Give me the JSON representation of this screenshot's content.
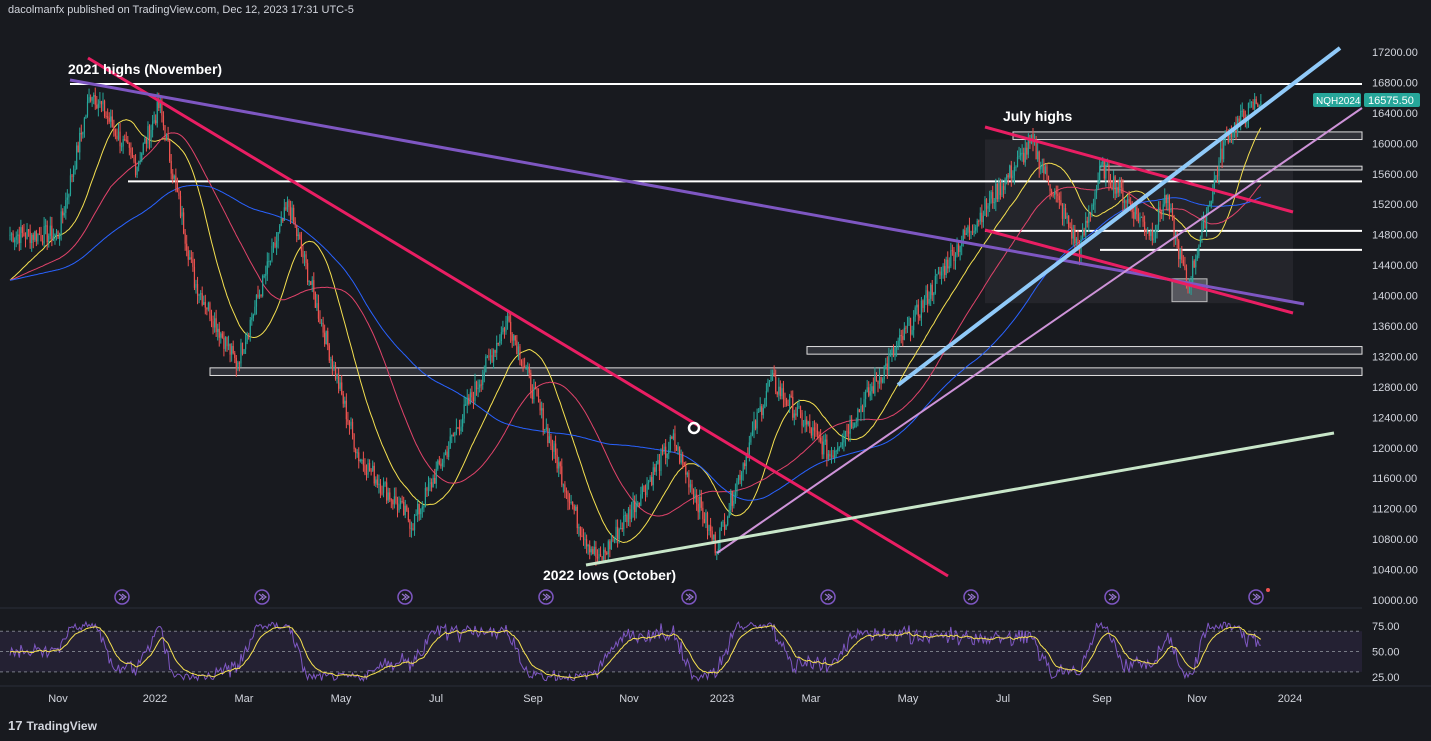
{
  "header": {
    "publisher_line": "dacolmanfx published on TradingView.com, Dec 12, 2023 17:31 UTC-5"
  },
  "footer": {
    "brand": "TradingView",
    "logo_glyph": "17"
  },
  "colors": {
    "background": "#181a1f",
    "candle_up": "#26a69a",
    "candle_down": "#ef5350",
    "trendline_pink": "#e91e63",
    "trendline_purple": "#7e57c2",
    "trendline_lightblue": "#90caf9",
    "trendline_mint": "#c8e6c9",
    "trendline_lavender": "#ce93d8",
    "ma_yellow": "#f5e050",
    "ma_red": "#e0436a",
    "ma_blue": "#2962ff",
    "rsi": "#7e57c2",
    "rsi_signal": "#f5e050",
    "price_badge": "#26a69a"
  },
  "chart_data": {
    "type": "candlestick",
    "symbol": "NQH2024",
    "last_price": "16575.50",
    "x_labels": [
      "Nov",
      "2022",
      "Mar",
      "May",
      "Jul",
      "Sep",
      "Nov",
      "2023",
      "Mar",
      "May",
      "Jul",
      "Sep",
      "Nov",
      "2024"
    ],
    "y_ticks": [
      "17200.00",
      "16800.00",
      "16400.00",
      "16000.00",
      "15600.00",
      "15200.00",
      "14800.00",
      "14400.00",
      "14000.00",
      "13600.00",
      "13200.00",
      "12800.00",
      "12400.00",
      "12000.00",
      "11600.00",
      "11200.00",
      "10800.00",
      "10400.00",
      "10000.00"
    ],
    "ylim": [
      10000,
      17200
    ],
    "annotations": [
      "2021 highs (November)",
      "July highs",
      "2022 lows (October)"
    ],
    "horizontal_levels": [
      16780,
      15500,
      14850,
      14600
    ],
    "zones": [
      {
        "from": 16050,
        "to": 16150
      },
      {
        "from": 15650,
        "to": 15700
      },
      {
        "from": 13230,
        "to": 13330
      },
      {
        "from": 12950,
        "to": 13050
      }
    ],
    "price_path": [
      [
        "2021-11-01",
        14800
      ],
      [
        "2021-11-22",
        16700
      ],
      [
        "2021-12-20",
        15700
      ],
      [
        "2022-01-04",
        16500
      ],
      [
        "2022-01-27",
        14200
      ],
      [
        "2022-02-24",
        13100
      ],
      [
        "2022-03-29",
        15200
      ],
      [
        "2022-05-12",
        11900
      ],
      [
        "2022-06-16",
        11000
      ],
      [
        "2022-08-16",
        13700
      ],
      [
        "2022-09-30",
        11000
      ],
      [
        "2022-10-13",
        10500
      ],
      [
        "2022-11-30",
        12100
      ],
      [
        "2022-12-28",
        10700
      ],
      [
        "2023-02-02",
        12900
      ],
      [
        "2023-03-13",
        11900
      ],
      [
        "2023-04-18",
        13100
      ],
      [
        "2023-05-31",
        14600
      ],
      [
        "2023-07-19",
        16000
      ],
      [
        "2023-08-18",
        14600
      ],
      [
        "2023-09-01",
        15700
      ],
      [
        "2023-10-03",
        14800
      ],
      [
        "2023-10-12",
        15300
      ],
      [
        "2023-10-26",
        14100
      ],
      [
        "2023-11-20",
        16100
      ],
      [
        "2023-12-12",
        16575
      ]
    ],
    "rsi": {
      "levels": [
        75,
        50,
        25
      ],
      "y_ticks": [
        "75.00",
        "50.00",
        "25.00"
      ]
    }
  }
}
